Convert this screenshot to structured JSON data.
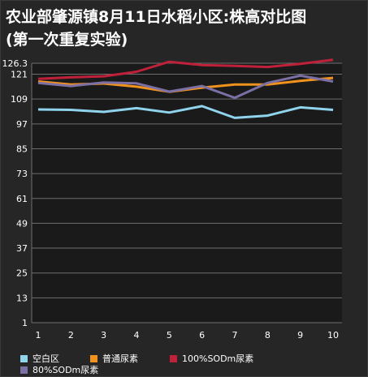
{
  "title_line1": "农业部肇源镇8月11日水稻小区:株高对比图",
  "title_line2": "(第一次重复实验)",
  "colors": {
    "background": "#262626",
    "plot_background": "#1a1a1a",
    "grid": "#6e6e6e",
    "text": "#ffffff"
  },
  "chart_data": {
    "type": "line",
    "title": "农业部肇源镇8月11日水稻小区:株高对比图(第一次重复实验)",
    "xlabel": "",
    "ylabel": "",
    "x": [
      1,
      2,
      3,
      4,
      5,
      6,
      7,
      8,
      9,
      10
    ],
    "xticks": [
      "1",
      "2",
      "3",
      "4",
      "5",
      "6",
      "7",
      "8",
      "9",
      "10"
    ],
    "yticks": [
      "1",
      "13",
      "25",
      "37",
      "49",
      "61",
      "73",
      "85",
      "97",
      "109",
      "121",
      "126.3"
    ],
    "ylim": [
      1,
      126.3
    ],
    "grid": true,
    "legend_position": "bottom",
    "series": [
      {
        "name": "空白区",
        "color": "#8fd3ec",
        "values": [
          104,
          103.8,
          102.8,
          104.6,
          102.5,
          105.6,
          99.9,
          101,
          105,
          103.8
        ]
      },
      {
        "name": "普通尿素",
        "color": "#f0921e",
        "values": [
          117.5,
          116,
          116.5,
          115,
          112.5,
          114.5,
          116,
          116,
          117.8,
          119.2
        ]
      },
      {
        "name": "100%SODm尿素",
        "color": "#c0213a",
        "values": [
          118.8,
          119.5,
          120,
          122.2,
          127,
          125.4,
          125,
          124.5,
          126,
          128
        ]
      },
      {
        "name": "80%SODm尿素",
        "color": "#7b6fa3",
        "values": [
          116.8,
          115.3,
          117,
          116.6,
          112.6,
          115.3,
          109.6,
          116.8,
          120.3,
          117.5
        ]
      }
    ]
  }
}
